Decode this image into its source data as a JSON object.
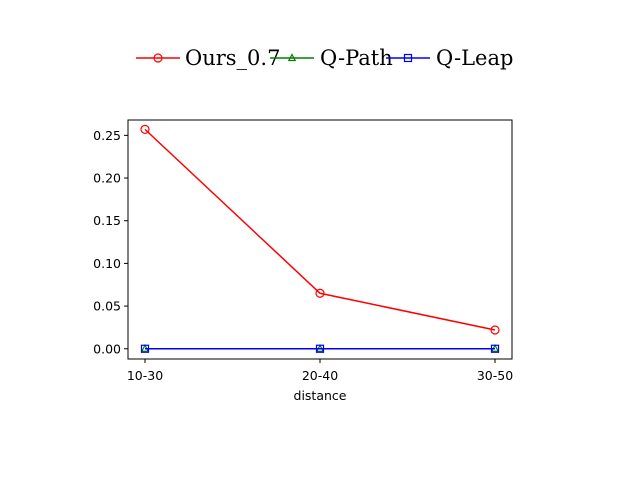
{
  "chart_data": {
    "type": "line",
    "title": "",
    "xlabel": "distance",
    "ylabel": "",
    "categories": [
      "10-30",
      "20-40",
      "30-50"
    ],
    "ylim": [
      -0.012,
      0.268
    ],
    "yticks": [
      "0.00",
      "0.05",
      "0.10",
      "0.15",
      "0.20",
      "0.25"
    ],
    "ytick_values": [
      0.0,
      0.05,
      0.1,
      0.15,
      0.2,
      0.25
    ],
    "grid": false,
    "legend_position": "top-center",
    "series": [
      {
        "name": "Ours_0.7",
        "values": [
          0.257,
          0.065,
          0.022
        ],
        "color": "#ff0000",
        "marker": "circle"
      },
      {
        "name": "Q-Path",
        "values": [
          0.0,
          0.0,
          0.0
        ],
        "color": "#008000",
        "marker": "triangle"
      },
      {
        "name": "Q-Leap",
        "values": [
          0.0,
          0.0,
          0.0
        ],
        "color": "#0000ff",
        "marker": "square"
      }
    ]
  }
}
